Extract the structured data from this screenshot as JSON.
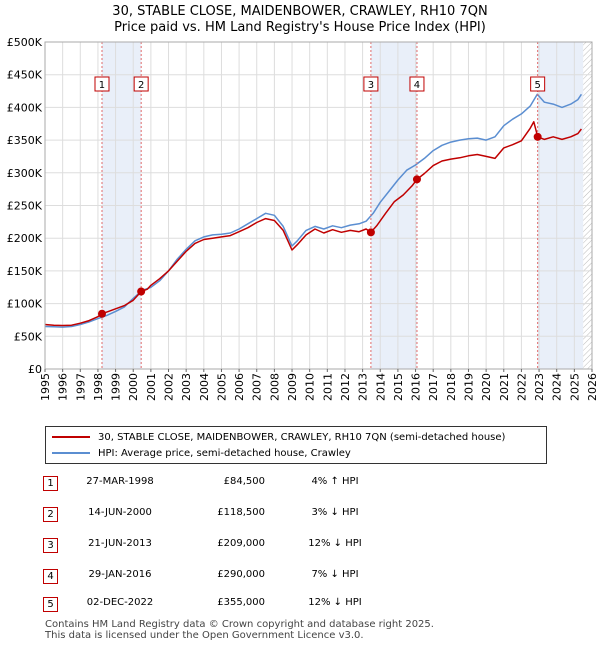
{
  "title": {
    "line1": "30, STABLE CLOSE, MAIDENBOWER, CRAWLEY, RH10 7QN",
    "line2": "Price paid vs. HM Land Registry's House Price Index (HPI)"
  },
  "chart_data": {
    "type": "line",
    "ylim": [
      0,
      500000
    ],
    "xlim": [
      1995,
      2026
    ],
    "y_ticks": [
      {
        "value": 0,
        "label": "£0"
      },
      {
        "value": 50000,
        "label": "£50K"
      },
      {
        "value": 100000,
        "label": "£100K"
      },
      {
        "value": 150000,
        "label": "£150K"
      },
      {
        "value": 200000,
        "label": "£200K"
      },
      {
        "value": 250000,
        "label": "£250K"
      },
      {
        "value": 300000,
        "label": "£300K"
      },
      {
        "value": 350000,
        "label": "£350K"
      },
      {
        "value": 400000,
        "label": "£400K"
      },
      {
        "value": 450000,
        "label": "£450K"
      },
      {
        "value": 500000,
        "label": "£500K"
      }
    ],
    "x_ticks": [
      "1995",
      "1996",
      "1997",
      "1998",
      "1999",
      "2000",
      "2001",
      "2002",
      "2003",
      "2004",
      "2005",
      "2006",
      "2007",
      "2008",
      "2009",
      "2010",
      "2011",
      "2012",
      "2013",
      "2014",
      "2015",
      "2016",
      "2017",
      "2018",
      "2019",
      "2020",
      "2021",
      "2022",
      "2023",
      "2024",
      "2025",
      "2026"
    ],
    "grid": true,
    "colors": {
      "property": "#c00000",
      "hpi": "#5b8ed1",
      "band": "#e9eff9",
      "marker_line": "#e06a6a",
      "grid": "#dddddd"
    },
    "shaded_periods": [
      [
        1998.23,
        2000.45
      ],
      [
        2013.47,
        2016.08
      ],
      [
        2022.92,
        2025.5
      ]
    ],
    "hatched_future": [
      2025.5,
      2026
    ],
    "series": [
      {
        "name": "30, STABLE CLOSE, MAIDENBOWER, CRAWLEY, RH10 7QN (semi-detached house)",
        "color": "#c00000",
        "x": [
          1995.0,
          1995.5,
          1996.0,
          1996.5,
          1997.0,
          1997.5,
          1998.0,
          1998.23,
          1998.6,
          1999.0,
          1999.5,
          2000.0,
          2000.45,
          2000.8,
          2001.0,
          2001.5,
          2002.0,
          2002.5,
          2003.0,
          2003.5,
          2004.0,
          2004.5,
          2005.0,
          2005.5,
          2006.0,
          2006.5,
          2007.0,
          2007.5,
          2008.0,
          2008.5,
          2009.0,
          2009.3,
          2009.8,
          2010.3,
          2010.8,
          2011.3,
          2011.8,
          2012.3,
          2012.8,
          2013.2,
          2013.47,
          2013.8,
          2014.3,
          2014.8,
          2015.3,
          2015.8,
          2016.08,
          2016.5,
          2017.0,
          2017.5,
          2018.0,
          2018.5,
          2019.0,
          2019.5,
          2020.0,
          2020.5,
          2021.0,
          2021.5,
          2022.0,
          2022.5,
          2022.7,
          2022.92,
          2023.3,
          2023.8,
          2024.3,
          2024.8,
          2025.2,
          2025.4
        ],
        "y": [
          68000,
          67000,
          66500,
          67000,
          70000,
          74000,
          80000,
          84500,
          88000,
          92000,
          97000,
          105000,
          118500,
          122000,
          128000,
          138000,
          150000,
          165000,
          180000,
          192000,
          198000,
          200000,
          202000,
          204000,
          210000,
          216000,
          224000,
          230000,
          227000,
          212000,
          182000,
          190000,
          205000,
          214000,
          208000,
          213000,
          209000,
          212000,
          210000,
          214000,
          209000,
          219000,
          238000,
          256000,
          266000,
          280000,
          290000,
          299000,
          311000,
          318000,
          321000,
          323000,
          326000,
          328000,
          325000,
          322000,
          338000,
          343000,
          349000,
          368000,
          378000,
          355000,
          351000,
          355000,
          351000,
          355000,
          360000,
          367000
        ]
      },
      {
        "name": "HPI: Average price, semi-detached house, Crawley",
        "color": "#5b8ed1",
        "x": [
          1995.0,
          1995.5,
          1996.0,
          1996.5,
          1997.0,
          1997.5,
          1998.0,
          1998.5,
          1999.0,
          1999.5,
          2000.0,
          2000.5,
          2001.0,
          2001.5,
          2002.0,
          2002.5,
          2003.0,
          2003.5,
          2004.0,
          2004.5,
          2005.0,
          2005.5,
          2006.0,
          2006.5,
          2007.0,
          2007.5,
          2008.0,
          2008.5,
          2009.0,
          2009.3,
          2009.8,
          2010.3,
          2010.8,
          2011.3,
          2011.8,
          2012.3,
          2012.8,
          2013.2,
          2013.6,
          2014.0,
          2014.5,
          2015.0,
          2015.5,
          2016.0,
          2016.5,
          2017.0,
          2017.5,
          2018.0,
          2018.5,
          2019.0,
          2019.5,
          2020.0,
          2020.5,
          2021.0,
          2021.5,
          2022.0,
          2022.5,
          2022.9,
          2023.3,
          2023.8,
          2024.3,
          2024.8,
          2025.2,
          2025.4
        ],
        "y": [
          65000,
          64500,
          64000,
          65000,
          68000,
          72000,
          77000,
          82000,
          88000,
          95000,
          108000,
          120000,
          125000,
          135000,
          150000,
          168000,
          183000,
          196000,
          202000,
          205000,
          206000,
          208000,
          214000,
          222000,
          230000,
          238000,
          235000,
          218000,
          188000,
          196000,
          212000,
          218000,
          214000,
          219000,
          216000,
          220000,
          222000,
          226000,
          238000,
          255000,
          272000,
          289000,
          304000,
          312000,
          322000,
          334000,
          342000,
          347000,
          350000,
          352000,
          353000,
          350000,
          355000,
          372000,
          382000,
          390000,
          402000,
          420000,
          408000,
          405000,
          400000,
          405000,
          412000,
          420000
        ]
      }
    ],
    "sales": [
      {
        "label": "1",
        "x": 1998.23,
        "y": 84500
      },
      {
        "label": "2",
        "x": 2000.45,
        "y": 118500
      },
      {
        "label": "3",
        "x": 2013.47,
        "y": 209000
      },
      {
        "label": "4",
        "x": 2016.08,
        "y": 290000
      },
      {
        "label": "5",
        "x": 2022.92,
        "y": 355000
      }
    ]
  },
  "legend": {
    "property": "30, STABLE CLOSE, MAIDENBOWER, CRAWLEY, RH10 7QN (semi-detached house)",
    "hpi": "HPI: Average price, semi-detached house, Crawley"
  },
  "sales_table": [
    {
      "num": "1",
      "date": "27-MAR-1998",
      "price": "£84,500",
      "hpi": "4% ↑ HPI"
    },
    {
      "num": "2",
      "date": "14-JUN-2000",
      "price": "£118,500",
      "hpi": "3% ↓ HPI"
    },
    {
      "num": "3",
      "date": "21-JUN-2013",
      "price": "£209,000",
      "hpi": "12% ↓ HPI"
    },
    {
      "num": "4",
      "date": "29-JAN-2016",
      "price": "£290,000",
      "hpi": "7% ↓ HPI"
    },
    {
      "num": "5",
      "date": "02-DEC-2022",
      "price": "£355,000",
      "hpi": "12% ↓ HPI"
    }
  ],
  "footer": {
    "line1": "Contains HM Land Registry data © Crown copyright and database right 2025.",
    "line2": "This data is licensed under the Open Government Licence v3.0."
  }
}
